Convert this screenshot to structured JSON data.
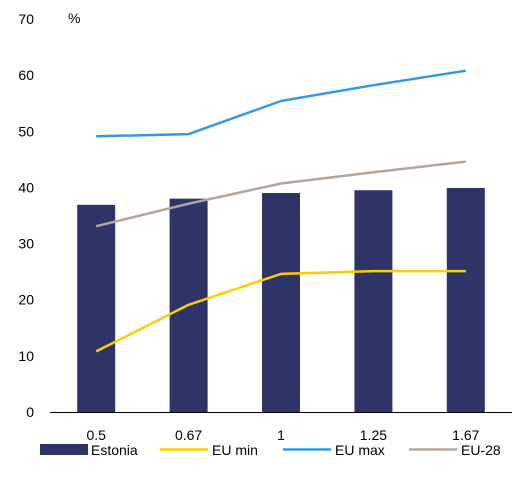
{
  "chart_data": {
    "type": "bar",
    "unit_label": "%",
    "categories": [
      "0.5",
      "0.67",
      "1",
      "1.25",
      "1.67"
    ],
    "ylim": [
      0,
      70
    ],
    "yticks": [
      "0",
      "10",
      "20",
      "30",
      "40",
      "50",
      "60",
      "70"
    ],
    "grid": false,
    "legend_position": "bottom",
    "bar_series": {
      "name": "Estonia",
      "color": "#2e3468",
      "values": [
        36.9,
        38.0,
        39.0,
        39.5,
        39.9
      ]
    },
    "line_series": [
      {
        "name": "EU min",
        "color": "#ffcc00",
        "values": [
          10.8,
          19.1,
          24.6,
          25.1,
          25.1
        ]
      },
      {
        "name": "EU max",
        "color": "#3399e6",
        "values": [
          49.1,
          49.5,
          55.4,
          58.2,
          60.8
        ]
      },
      {
        "name": "EU-28",
        "color": "#b3a59a",
        "values": [
          33.1,
          37.1,
          40.7,
          42.7,
          44.6
        ]
      }
    ]
  }
}
